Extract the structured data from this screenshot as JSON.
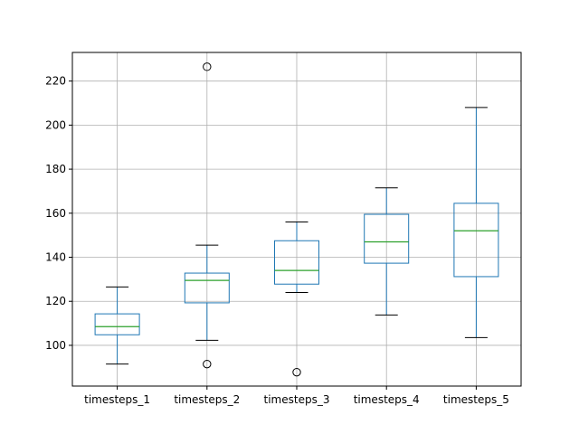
{
  "chart_data": {
    "type": "box",
    "title": "",
    "xlabel": "",
    "ylabel": "",
    "ylim": [
      81.5,
      233.0
    ],
    "yticks": [
      100,
      120,
      140,
      160,
      180,
      200,
      220
    ],
    "grid": true,
    "categories": [
      "timesteps_1",
      "timesteps_2",
      "timesteps_3",
      "timesteps_4",
      "timesteps_5"
    ],
    "boxes": [
      {
        "name": "timesteps_1",
        "whislo": 91.5,
        "q1": 104.8,
        "med": 108.5,
        "q3": 114.3,
        "whishi": 126.5,
        "fliers": []
      },
      {
        "name": "timesteps_2",
        "whislo": 102.3,
        "q1": 119.3,
        "med": 129.5,
        "q3": 132.8,
        "whishi": 145.5,
        "fliers": [
          226.5,
          91.5
        ]
      },
      {
        "name": "timesteps_3",
        "whislo": 124.0,
        "q1": 127.8,
        "med": 134.0,
        "q3": 147.5,
        "whishi": 156.0,
        "fliers": [
          87.8
        ]
      },
      {
        "name": "timesteps_4",
        "whislo": 113.8,
        "q1": 137.3,
        "med": 147.0,
        "q3": 159.5,
        "whishi": 171.5,
        "fliers": []
      },
      {
        "name": "timesteps_5",
        "whislo": 103.5,
        "q1": 131.2,
        "med": 152.0,
        "q3": 164.5,
        "whishi": 208.0,
        "fliers": []
      }
    ],
    "colors": {
      "box": "#1f77b4",
      "median": "#2ca02c",
      "whisker_cap": "#000000",
      "grid": "#b0b0b0",
      "axes": "#000000",
      "flier": "#000000"
    }
  }
}
